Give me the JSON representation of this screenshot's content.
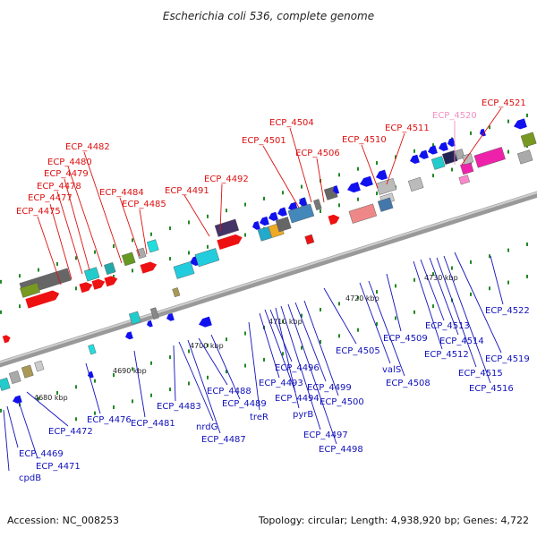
{
  "title": "Escherichia coli 536, complete genome",
  "footer": {
    "accession": "Accession: NC_008253",
    "summary": "Topology: circular; Length: 4,938,920 bp; Genes: 4,722"
  },
  "colors": {
    "upper_label": "#dd1111",
    "lower_label": "#1111bb",
    "highlight_label": "#f090c0",
    "backbone": "#888888",
    "tick": "#228822"
  },
  "kbp_marks": [
    "4680 kbp",
    "4690 kbp",
    "4700 kbp",
    "4710 kbp",
    "4720 kbp",
    "4730 kbp"
  ],
  "upper_labels": [
    {
      "text": "ECP_4475"
    },
    {
      "text": "ECP_4477"
    },
    {
      "text": "ECP_4478"
    },
    {
      "text": "ECP_4479"
    },
    {
      "text": "ECP_4480"
    },
    {
      "text": "ECP_4482"
    },
    {
      "text": "ECP_4484"
    },
    {
      "text": "ECP_4485"
    },
    {
      "text": "ECP_4491"
    },
    {
      "text": "ECP_4492"
    },
    {
      "text": "ECP_4501"
    },
    {
      "text": "ECP_4504"
    },
    {
      "text": "ECP_4506"
    },
    {
      "text": "ECP_4510"
    },
    {
      "text": "ECP_4511"
    },
    {
      "text": "ECP_4520",
      "highlight": true
    },
    {
      "text": "ECP_4521"
    }
  ],
  "lower_labels": [
    {
      "text": "ECP_4469"
    },
    {
      "text": "ECP_4471"
    },
    {
      "text": "cpdB"
    },
    {
      "text": "ECP_4472"
    },
    {
      "text": "ECP_4476"
    },
    {
      "text": "ECP_4481"
    },
    {
      "text": "ECP_4483"
    },
    {
      "text": "nrdG"
    },
    {
      "text": "ECP_4487"
    },
    {
      "text": "ECP_4488"
    },
    {
      "text": "ECP_4489"
    },
    {
      "text": "treR"
    },
    {
      "text": "ECP_4493"
    },
    {
      "text": "ECP_4494"
    },
    {
      "text": "ECP_4496"
    },
    {
      "text": "pyrB"
    },
    {
      "text": "ECP_4497"
    },
    {
      "text": "ECP_4498"
    },
    {
      "text": "ECP_4499"
    },
    {
      "text": "ECP_4500"
    },
    {
      "text": "ECP_4505"
    },
    {
      "text": "valS"
    },
    {
      "text": "ECP_4508"
    },
    {
      "text": "ECP_4509"
    },
    {
      "text": "ECP_4512"
    },
    {
      "text": "ECP_4513"
    },
    {
      "text": "ECP_4514"
    },
    {
      "text": "ECP_4515"
    },
    {
      "text": "ECP_4516"
    },
    {
      "text": "ECP_4519"
    },
    {
      "text": "ECP_4522"
    }
  ]
}
